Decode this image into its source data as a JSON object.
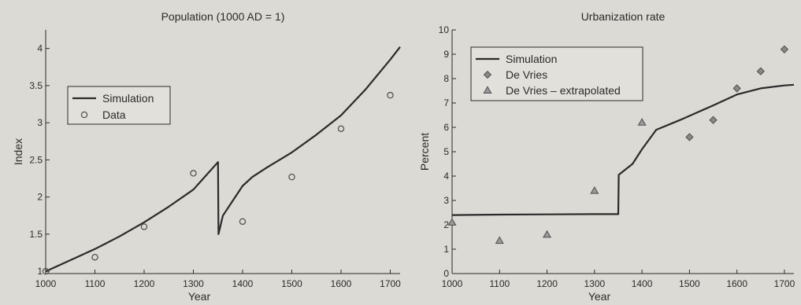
{
  "chart_data": [
    {
      "type": "line",
      "title": "Population (1000 AD = 1)",
      "xlabel": "Year",
      "ylabel": "Index",
      "xlim": [
        1000,
        1720
      ],
      "ylim": [
        0.97,
        4.25
      ],
      "xticks": [
        1000,
        1100,
        1200,
        1300,
        1400,
        1500,
        1600,
        1700
      ],
      "yticks": [
        1,
        1.5,
        2,
        2.5,
        3,
        3.5,
        4
      ],
      "ytick_labels": [
        "1",
        "1.5",
        "2",
        "2.5",
        "3",
        "3.5",
        "4"
      ],
      "legend": {
        "position": "upper-left",
        "entries": [
          "Simulation",
          "Data"
        ]
      },
      "series": [
        {
          "name": "Simulation",
          "style": "line",
          "color": "#2a2a2a",
          "x": [
            1000,
            1050,
            1100,
            1150,
            1200,
            1250,
            1300,
            1350,
            1351,
            1360,
            1380,
            1400,
            1420,
            1450,
            1500,
            1550,
            1600,
            1650,
            1700,
            1720
          ],
          "y": [
            1.0,
            1.15,
            1.3,
            1.47,
            1.66,
            1.87,
            2.1,
            2.47,
            1.5,
            1.75,
            1.95,
            2.15,
            2.27,
            2.4,
            2.6,
            2.84,
            3.1,
            3.45,
            3.85,
            4.02
          ]
        },
        {
          "name": "Data",
          "style": "circle",
          "color": "#555555",
          "x": [
            1000,
            1100,
            1200,
            1300,
            1400,
            1500,
            1600,
            1700
          ],
          "y": [
            1.0,
            1.19,
            1.6,
            2.32,
            1.67,
            2.27,
            2.92,
            3.37
          ]
        }
      ]
    },
    {
      "type": "line",
      "title": "Urbanization rate",
      "xlabel": "Year",
      "ylabel": "Percent",
      "xlim": [
        1000,
        1720
      ],
      "ylim": [
        0,
        10
      ],
      "xticks": [
        1000,
        1100,
        1200,
        1300,
        1400,
        1500,
        1600,
        1700
      ],
      "yticks": [
        0,
        1,
        2,
        3,
        4,
        5,
        6,
        7,
        8,
        9,
        10
      ],
      "ytick_labels": [
        "0",
        "1",
        "2",
        "3",
        "4",
        "5",
        "6",
        "7",
        "8",
        "9",
        "10"
      ],
      "legend": {
        "position": "upper-left",
        "entries": [
          "Simulation",
          "De Vries",
          "De Vries – extrapolated"
        ]
      },
      "series": [
        {
          "name": "Simulation",
          "style": "line",
          "color": "#2a2a2a",
          "x": [
            1000,
            1100,
            1200,
            1300,
            1350,
            1351,
            1380,
            1400,
            1430,
            1480,
            1550,
            1600,
            1650,
            1700,
            1720
          ],
          "y": [
            2.4,
            2.42,
            2.43,
            2.44,
            2.44,
            4.05,
            4.5,
            5.1,
            5.9,
            6.3,
            6.9,
            7.35,
            7.6,
            7.72,
            7.75
          ]
        },
        {
          "name": "De Vries",
          "style": "diamond",
          "color": "#555555",
          "x": [
            1500,
            1550,
            1600,
            1650,
            1700
          ],
          "y": [
            5.6,
            6.3,
            7.6,
            8.3,
            9.2
          ]
        },
        {
          "name": "De Vries – extrapolated",
          "style": "triangle",
          "color": "#555555",
          "x": [
            1000,
            1100,
            1200,
            1300,
            1400
          ],
          "y": [
            2.1,
            1.35,
            1.6,
            3.4,
            6.2
          ]
        }
      ]
    }
  ]
}
